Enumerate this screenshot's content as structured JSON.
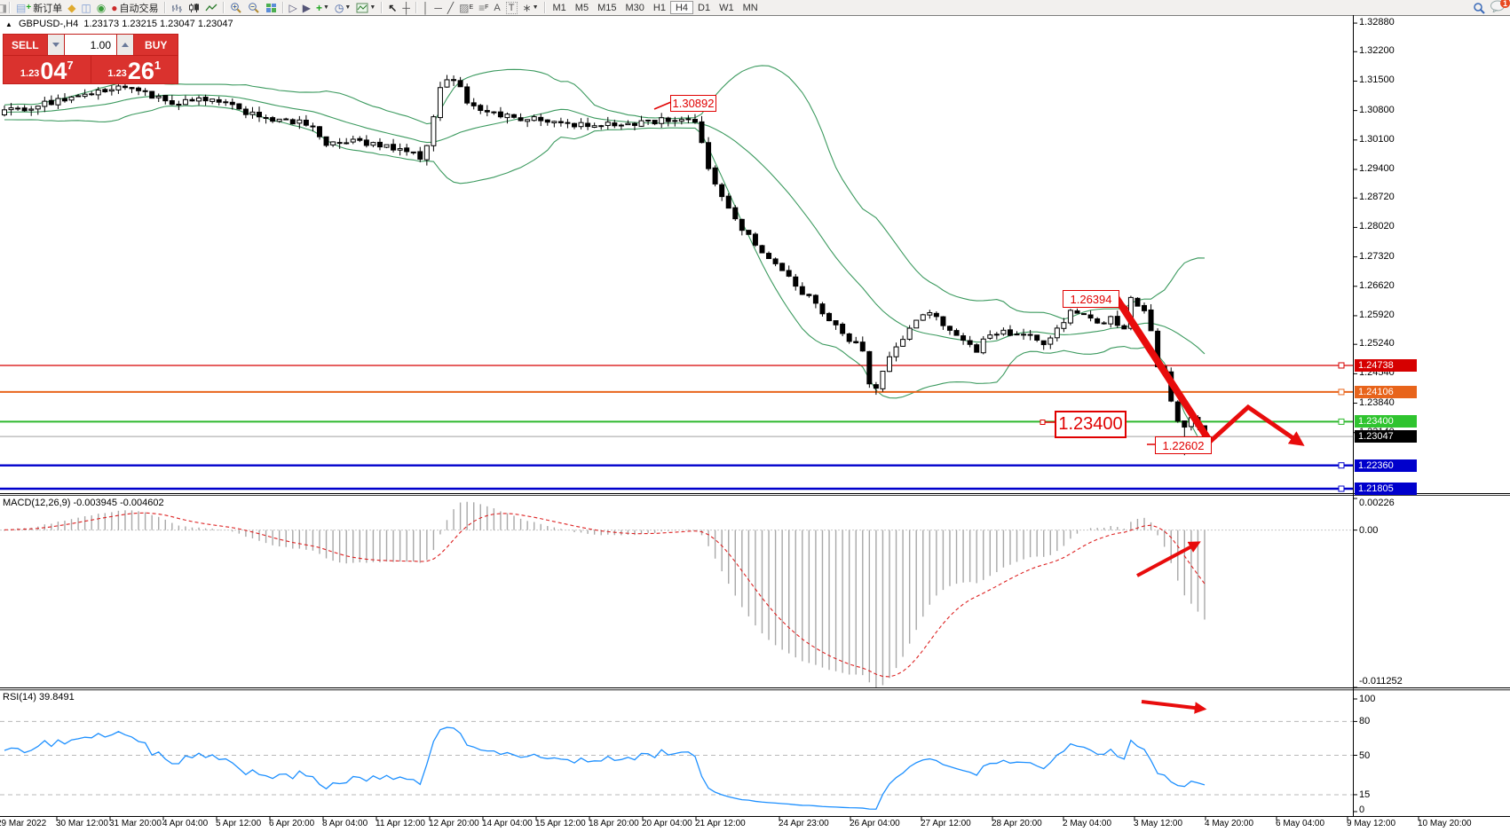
{
  "toolbar": {
    "new_order_label": "新订单",
    "autotrade_label": "自动交易",
    "text_tool": "A",
    "textlabel_tool": "T",
    "channel_tag": "E",
    "fibo_tag": "F",
    "timeframes": [
      "M1",
      "M5",
      "M15",
      "M30",
      "H1",
      "H4",
      "D1",
      "W1",
      "MN"
    ],
    "active_timeframe": "H4",
    "notification_count": "1"
  },
  "chart": {
    "title": "GBPUSD-,H4",
    "ohlc_readout": "1.23173 1.23215 1.23047 1.23047",
    "one_click": {
      "sell_label": "SELL",
      "buy_label": "BUY",
      "volume": "1.00",
      "price_prefix": "1.23",
      "sell_big": "04",
      "sell_sup": "7",
      "buy_big": "26",
      "buy_sup": "1"
    },
    "price_axis": {
      "ticks": [
        "1.32880",
        "1.32200",
        "1.31500",
        "1.30800",
        "1.30100",
        "1.29400",
        "1.28720",
        "1.28020",
        "1.27320",
        "1.26620",
        "1.25920",
        "1.25240",
        "1.24540",
        "1.23840",
        "1.23140"
      ],
      "badges": [
        {
          "label": "1.24738",
          "price": 1.24738,
          "bg": "#d60000"
        },
        {
          "label": "1.24106",
          "price": 1.24106,
          "bg": "#e8641b"
        },
        {
          "label": "1.23400",
          "price": 1.234,
          "bg": "#2fc42f"
        },
        {
          "label": "1.23047",
          "price": 1.23047,
          "bg": "#000000"
        },
        {
          "label": "1.22360",
          "price": 1.2236,
          "bg": "#0000cc"
        },
        {
          "label": "1.21805",
          "price": 1.21805,
          "bg": "#0000cc"
        }
      ]
    },
    "callouts": [
      {
        "text": "1.30892"
      },
      {
        "text": "1.26394"
      },
      {
        "text": "1.23400"
      },
      {
        "text": "1.22602"
      }
    ]
  },
  "macd": {
    "label": "MACD(12,26,9) -0.003945 -0.004602",
    "axis": [
      {
        "label": "0.00226",
        "value": 0.00226
      },
      {
        "label": "0.00",
        "value": 0
      },
      {
        "label": "-0.011252",
        "value": -0.011252
      }
    ]
  },
  "rsi": {
    "label": "RSI(14) 39.8491",
    "axis": [
      {
        "label": "100",
        "value": 100
      },
      {
        "label": "80",
        "value": 80
      },
      {
        "label": "50",
        "value": 50
      },
      {
        "label": "15",
        "value": 15
      },
      {
        "label": "0",
        "value": 0
      }
    ],
    "dashed_levels": [
      80,
      50,
      15
    ]
  },
  "time_axis": {
    "labels": [
      "29 Mar 2022",
      "30 Mar 12:00",
      "31 Mar 20:00",
      "4 Apr 04:00",
      "5 Apr 12:00",
      "6 Apr 20:00",
      "8 Apr 04:00",
      "11 Apr 12:00",
      "12 Apr 20:00",
      "14 Apr 04:00",
      "15 Apr 12:00",
      "18 Apr 20:00",
      "20 Apr 04:00",
      "21 Apr 12:00",
      "24 Apr 23:00",
      "26 Apr 04:00",
      "27 Apr 12:00",
      "28 Apr 20:00",
      "2 May 04:00",
      "3 May 12:00",
      "4 May 20:00",
      "6 May 04:00",
      "9 May 12:00",
      "10 May 20:00"
    ]
  },
  "chart_data": {
    "type": "candlestick",
    "symbol": "GBPUSD-",
    "timeframe": "H4",
    "bars": 180,
    "last_close": 1.23047,
    "price_range_visible": [
      1.21805,
      1.3288
    ],
    "price_anchors": [
      [
        0,
        1.3075
      ],
      [
        8,
        1.3105
      ],
      [
        14,
        1.3125
      ],
      [
        19,
        1.3138
      ],
      [
        25,
        1.3092
      ],
      [
        30,
        1.3108
      ],
      [
        36,
        1.3078
      ],
      [
        42,
        1.3052
      ],
      [
        46,
        1.3048
      ],
      [
        48,
        1.2995
      ],
      [
        52,
        1.3008
      ],
      [
        58,
        1.2988
      ],
      [
        62,
        1.2972
      ],
      [
        63,
        1.299
      ],
      [
        65,
        1.3135
      ],
      [
        67,
        1.3158
      ],
      [
        69,
        1.3102
      ],
      [
        73,
        1.3072
      ],
      [
        80,
        1.3056
      ],
      [
        88,
        1.3042
      ],
      [
        95,
        1.3052
      ],
      [
        101,
        1.3062
      ],
      [
        103,
        1.3048
      ],
      [
        105,
        1.2945
      ],
      [
        108,
        1.2845
      ],
      [
        111,
        1.2782
      ],
      [
        114,
        1.2728
      ],
      [
        117,
        1.2682
      ],
      [
        120,
        1.2632
      ],
      [
        124,
        1.2572
      ],
      [
        127,
        1.2522
      ],
      [
        128,
        1.2508
      ],
      [
        129,
        1.2428
      ],
      [
        130,
        1.2418
      ],
      [
        131,
        1.2458
      ],
      [
        133,
        1.2522
      ],
      [
        136,
        1.2578
      ],
      [
        138,
        1.2598
      ],
      [
        140,
        1.2572
      ],
      [
        143,
        1.2538
      ],
      [
        145,
        1.2512
      ],
      [
        147,
        1.2548
      ],
      [
        150,
        1.2552
      ],
      [
        153,
        1.2542
      ],
      [
        155,
        1.2522
      ],
      [
        157,
        1.2562
      ],
      [
        159,
        1.2602
      ],
      [
        161,
        1.2588
      ],
      [
        163,
        1.2572
      ],
      [
        165,
        1.2592
      ],
      [
        167,
        1.2562
      ],
      [
        168,
        1.2639
      ],
      [
        169,
        1.2622
      ],
      [
        170,
        1.2606
      ],
      [
        171,
        1.2556
      ],
      [
        172,
        1.2478
      ],
      [
        173,
        1.2452
      ],
      [
        174,
        1.2382
      ],
      [
        175,
        1.2348
      ],
      [
        176,
        1.2334
      ],
      [
        177,
        1.2352
      ],
      [
        178,
        1.2332
      ],
      [
        179,
        1.23047
      ]
    ],
    "bollinger_bands": {
      "period": 20,
      "deviation": 2,
      "color": "#3c9a5f"
    },
    "horizontal_levels": [
      {
        "price": 1.24738,
        "color": "#d60000"
      },
      {
        "price": 1.24106,
        "color": "#e8641b"
      },
      {
        "price": 1.234,
        "color": "#2eb82e"
      },
      {
        "price": 1.2236,
        "color": "#0000cc"
      },
      {
        "price": 1.21805,
        "color": "#0000cc"
      }
    ],
    "current_price_line": 1.23047,
    "macd": {
      "fast": 12,
      "slow": 26,
      "signal": 9,
      "current": -0.003945,
      "signal_current": -0.004602,
      "scale_max": 0.00226,
      "scale_min": -0.011252
    },
    "rsi": {
      "period": 14,
      "current": 39.8491
    },
    "annotations": {
      "spike_high": 1.26394,
      "swing_low": 1.22602,
      "resistance": 1.30892,
      "forecast": "down-arrow zigzag projecting lower prices"
    }
  }
}
